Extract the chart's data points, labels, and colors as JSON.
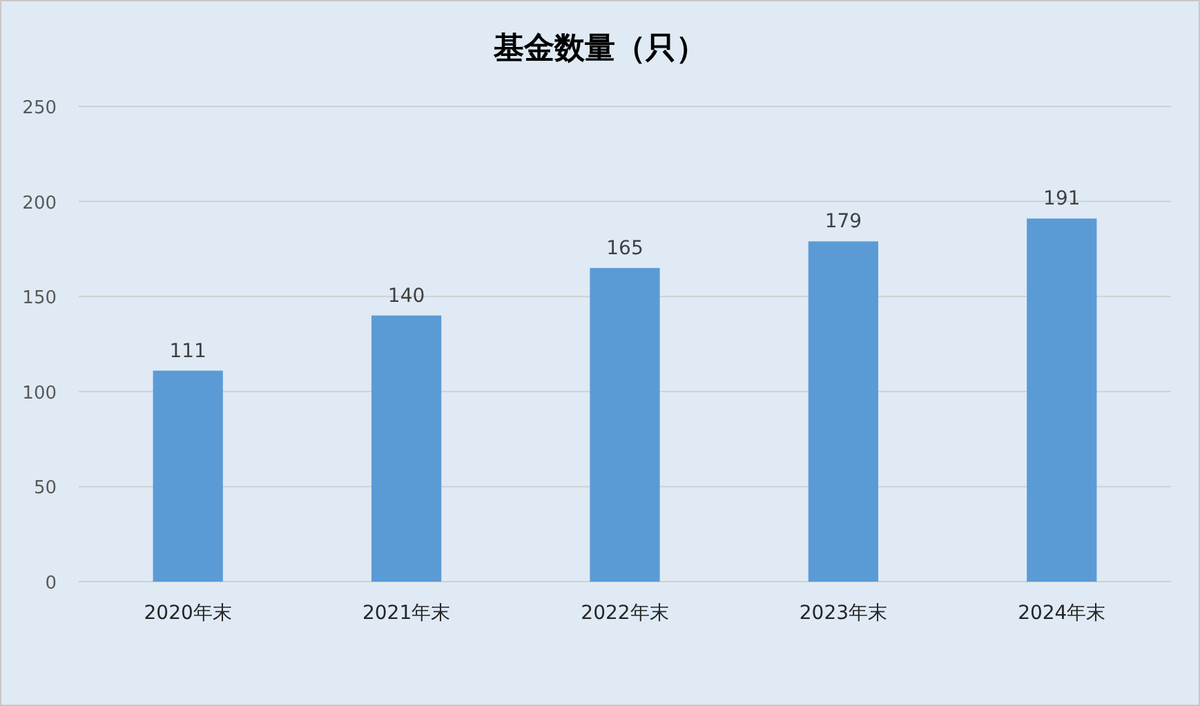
{
  "chart_data": {
    "type": "bar",
    "title": "基金数量（只）",
    "categories": [
      "2020年末",
      "2021年末",
      "2022年末",
      "2023年末",
      "2024年末"
    ],
    "values": [
      111,
      140,
      165,
      179,
      191
    ],
    "color": "#5b9bd5",
    "ylim": [
      0,
      250
    ],
    "yticks": [
      0,
      50,
      100,
      150,
      200,
      250
    ],
    "grid": "y",
    "data_labels": true
  }
}
